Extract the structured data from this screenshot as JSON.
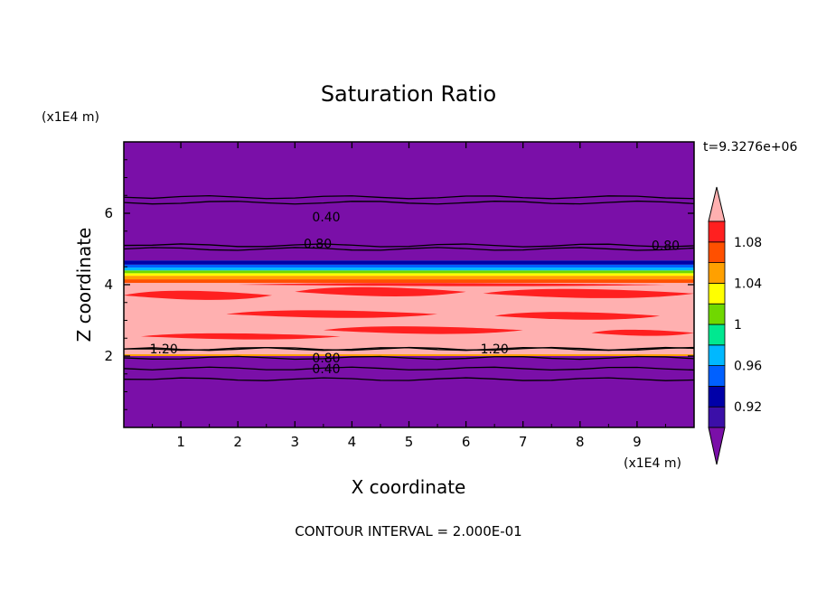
{
  "chart_data": {
    "type": "heatmap",
    "title": "Saturation Ratio",
    "xlabel": "X coordinate",
    "ylabel": "Z coordinate",
    "x_unit": "(x1E4 m)",
    "y_unit": "(x1E4 m)",
    "time_label": "t=9.3276e+06",
    "footer": "CONTOUR INTERVAL = 2.000E-01",
    "xlim": [
      0,
      10
    ],
    "ylim": [
      0,
      8
    ],
    "x_ticks": [
      "1",
      "2",
      "3",
      "4",
      "5",
      "6",
      "7",
      "8",
      "9"
    ],
    "y_ticks": [
      "2",
      "4",
      "6"
    ],
    "colorbar": {
      "levels": [
        0.92,
        0.94,
        0.96,
        0.98,
        1.0,
        1.02,
        1.04,
        1.06,
        1.08,
        1.1
      ],
      "labels": [
        "0.92",
        "0.96",
        "1",
        "1.04",
        "1.08"
      ],
      "colors": [
        "#7a0fa8",
        "#3b0fa8",
        "#0000a8",
        "#0060ff",
        "#00b8ff",
        "#00e890",
        "#70d800",
        "#ffff00",
        "#ffa000",
        "#ff5000",
        "#ff2020",
        "#ffb0b0"
      ]
    },
    "bands": [
      {
        "z0": 0.0,
        "z1": 2.0,
        "color": "#7a0fa8"
      },
      {
        "z0": 2.0,
        "z1": 2.05,
        "color": "#ffa000"
      },
      {
        "z0": 2.05,
        "z1": 4.05,
        "color": "#ffb0b0"
      },
      {
        "z0": 4.05,
        "z1": 4.15,
        "color": "#ff5000"
      },
      {
        "z0": 4.15,
        "z1": 4.25,
        "color": "#ffa000"
      },
      {
        "z0": 4.25,
        "z1": 4.32,
        "color": "#ffff00"
      },
      {
        "z0": 4.32,
        "z1": 4.4,
        "color": "#70d800"
      },
      {
        "z0": 4.4,
        "z1": 4.48,
        "color": "#00b8ff"
      },
      {
        "z0": 4.48,
        "z1": 4.56,
        "color": "#0060ff"
      },
      {
        "z0": 4.56,
        "z1": 4.68,
        "color": "#0000a8"
      },
      {
        "z0": 4.68,
        "z1": 8.0,
        "color": "#7a0fa8"
      }
    ],
    "red_patches": [
      {
        "x0": 0.0,
        "x1": 2.6,
        "z0": 3.55,
        "z1": 3.85
      },
      {
        "x0": 3.0,
        "x1": 6.0,
        "z0": 3.65,
        "z1": 3.95
      },
      {
        "x0": 6.3,
        "x1": 10.0,
        "z0": 3.6,
        "z1": 3.9
      },
      {
        "x0": 1.8,
        "x1": 5.5,
        "z0": 3.05,
        "z1": 3.3
      },
      {
        "x0": 6.5,
        "x1": 9.4,
        "z0": 3.0,
        "z1": 3.25
      },
      {
        "x0": 3.5,
        "x1": 7.0,
        "z0": 2.6,
        "z1": 2.85
      },
      {
        "x0": 8.2,
        "x1": 10.0,
        "z0": 2.55,
        "z1": 2.75
      },
      {
        "x0": 0.3,
        "x1": 3.8,
        "z0": 2.45,
        "z1": 2.65
      },
      {
        "x0": 2.0,
        "x1": 9.5,
        "z0": 3.95,
        "z1": 4.05
      }
    ],
    "contours": [
      {
        "label": "0.40",
        "z": 6.3,
        "label_x": 3.55,
        "label_y": 5.9
      },
      {
        "label": "",
        "z": 6.45,
        "label_x": null,
        "label_y": null
      },
      {
        "label": "0.80",
        "z": 5.1,
        "label_x": 3.4,
        "label_y": 5.15
      },
      {
        "label": "0.80",
        "z": 5.0,
        "label_x": 9.5,
        "label_y": 5.1
      },
      {
        "label": "1.20",
        "z": 2.2,
        "label_x": 0.7,
        "label_y": 2.2
      },
      {
        "label": "1.20",
        "z": 2.2,
        "label_x": 6.5,
        "label_y": 2.2
      },
      {
        "label": "0.80",
        "z": 1.95,
        "label_x": 3.55,
        "label_y": 1.95
      },
      {
        "label": "0.40",
        "z": 1.65,
        "label_x": 3.55,
        "label_y": 1.65
      },
      {
        "label": "",
        "z": 1.35,
        "label_x": null,
        "label_y": null
      }
    ]
  }
}
